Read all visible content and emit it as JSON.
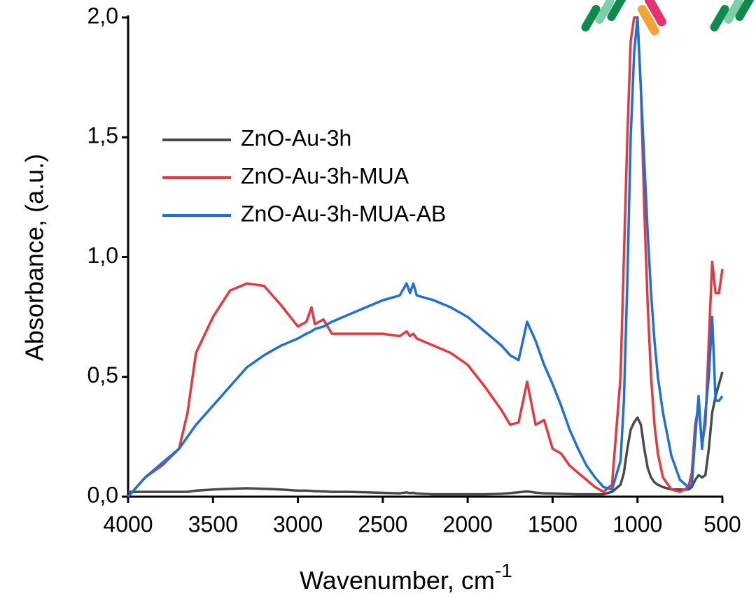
{
  "chart_data": {
    "type": "line",
    "xlabel": "Wavenumber, cm",
    "xlabel_superscript": "-1",
    "ylabel": "Absorbance, (a.u.)",
    "xlim": [
      4000,
      500
    ],
    "xticks": [
      4000,
      3500,
      3000,
      2500,
      2000,
      1500,
      1000,
      500
    ],
    "ylim": [
      0,
      2
    ],
    "yticks": [
      {
        "value": 0,
        "label": "0,0"
      },
      {
        "value": 0.5,
        "label": "0,5"
      },
      {
        "value": 1,
        "label": "1,0"
      },
      {
        "value": 1.5,
        "label": "1,5"
      },
      {
        "value": 2,
        "label": "2,0"
      }
    ],
    "legend": "upper left",
    "x": [
      4000,
      3900,
      3800,
      3700,
      3650,
      3600,
      3500,
      3400,
      3300,
      3200,
      3100,
      3000,
      2950,
      2920,
      2900,
      2850,
      2800,
      2700,
      2600,
      2500,
      2400,
      2360,
      2340,
      2320,
      2300,
      2200,
      2100,
      2000,
      1900,
      1800,
      1750,
      1700,
      1650,
      1600,
      1550,
      1500,
      1450,
      1400,
      1350,
      1300,
      1250,
      1200,
      1150,
      1100,
      1080,
      1060,
      1040,
      1020,
      1000,
      980,
      960,
      940,
      920,
      900,
      880,
      850,
      800,
      750,
      700,
      680,
      660,
      640,
      620,
      600,
      580,
      560,
      540,
      520,
      500
    ],
    "series": [
      {
        "name": "ZnO-Au-3h",
        "color": "#4a4a4a",
        "values": [
          0.02,
          0.02,
          0.02,
          0.02,
          0.02,
          0.025,
          0.03,
          0.033,
          0.035,
          0.033,
          0.03,
          0.025,
          0.025,
          0.024,
          0.023,
          0.022,
          0.02,
          0.02,
          0.018,
          0.016,
          0.014,
          0.018,
          0.015,
          0.016,
          0.013,
          0.01,
          0.01,
          0.01,
          0.01,
          0.012,
          0.015,
          0.018,
          0.022,
          0.017,
          0.014,
          0.013,
          0.012,
          0.011,
          0.01,
          0.01,
          0.01,
          0.01,
          0.02,
          0.05,
          0.1,
          0.2,
          0.28,
          0.31,
          0.33,
          0.3,
          0.2,
          0.12,
          0.08,
          0.06,
          0.05,
          0.04,
          0.03,
          0.03,
          0.03,
          0.04,
          0.07,
          0.09,
          0.08,
          0.09,
          0.2,
          0.35,
          0.42,
          0.47,
          0.52
        ]
      },
      {
        "name": "ZnO-Au-3h-MUA",
        "color": "#e8373e",
        "values": [
          0.0,
          0.08,
          0.13,
          0.2,
          0.35,
          0.6,
          0.75,
          0.86,
          0.89,
          0.88,
          0.8,
          0.71,
          0.73,
          0.79,
          0.72,
          0.74,
          0.68,
          0.68,
          0.68,
          0.68,
          0.67,
          0.69,
          0.67,
          0.68,
          0.66,
          0.63,
          0.6,
          0.55,
          0.46,
          0.36,
          0.3,
          0.31,
          0.48,
          0.3,
          0.32,
          0.2,
          0.18,
          0.13,
          0.1,
          0.07,
          0.04,
          0.02,
          0.05,
          0.5,
          1.0,
          1.5,
          1.9,
          2.0,
          2.0,
          1.7,
          1.2,
          0.8,
          0.5,
          0.3,
          0.18,
          0.08,
          0.03,
          0.02,
          0.04,
          0.1,
          0.3,
          0.38,
          0.22,
          0.3,
          0.65,
          0.98,
          0.85,
          0.85,
          0.95
        ]
      },
      {
        "name": "ZnO-Au-3h-MUA-AB",
        "color": "#1f6fd6",
        "values": [
          0.0,
          0.08,
          0.14,
          0.2,
          0.25,
          0.3,
          0.38,
          0.46,
          0.54,
          0.59,
          0.63,
          0.66,
          0.68,
          0.69,
          0.7,
          0.71,
          0.73,
          0.76,
          0.79,
          0.82,
          0.84,
          0.89,
          0.85,
          0.89,
          0.84,
          0.82,
          0.79,
          0.75,
          0.69,
          0.63,
          0.59,
          0.57,
          0.73,
          0.65,
          0.55,
          0.47,
          0.38,
          0.28,
          0.2,
          0.13,
          0.08,
          0.04,
          0.03,
          0.15,
          0.4,
          0.9,
          1.5,
          1.85,
          2.0,
          1.7,
          1.4,
          1.1,
          0.85,
          0.65,
          0.5,
          0.35,
          0.17,
          0.07,
          0.04,
          0.05,
          0.25,
          0.42,
          0.2,
          0.35,
          0.5,
          0.75,
          0.4,
          0.4,
          0.42
        ]
      }
    ]
  }
}
